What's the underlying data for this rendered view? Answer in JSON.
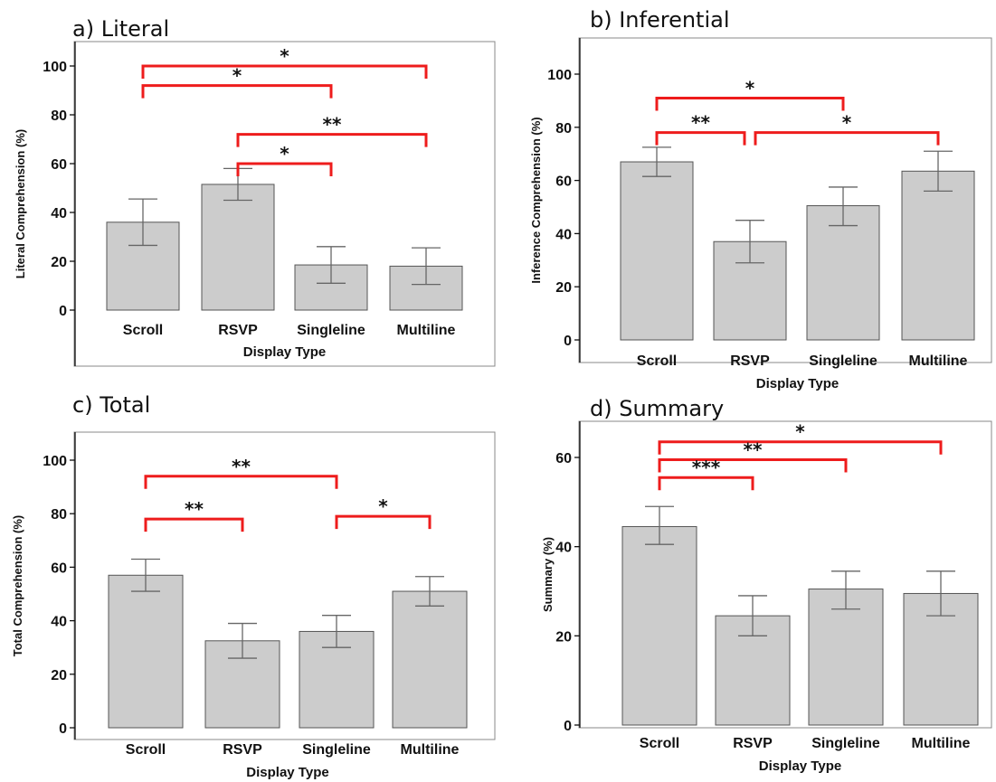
{
  "chart_data": [
    {
      "type": "bar",
      "title": "a) Literal",
      "xlabel": "Display Type",
      "ylabel": "Literal Comprehension (%)",
      "categories": [
        "Scroll",
        "RSVP",
        "Singleline",
        "Multiline"
      ],
      "values": [
        36,
        51.5,
        18.5,
        18
      ],
      "error_low": [
        26.5,
        45,
        11,
        10.5
      ],
      "error_high": [
        45.5,
        58,
        26,
        25.5
      ],
      "ylim": [
        0,
        110
      ],
      "yticks": [
        "0",
        "20",
        "40",
        "60",
        "80",
        "100"
      ],
      "significance": [
        {
          "from": 0,
          "to": 3,
          "label": "*",
          "level": 100
        },
        {
          "from": 0,
          "to": 2,
          "label": "*",
          "level": 92
        },
        {
          "from": 1,
          "to": 3,
          "label": "**",
          "level": 72
        },
        {
          "from": 1,
          "to": 2,
          "label": "*",
          "level": 60
        }
      ]
    },
    {
      "type": "bar",
      "title": "b) Inferential",
      "xlabel": "Display Type",
      "ylabel": "Inference Comprehension (%)",
      "categories": [
        "Scroll",
        "RSVP",
        "Singleline",
        "Multiline"
      ],
      "values": [
        67,
        37,
        50.5,
        63.5
      ],
      "error_low": [
        61.5,
        29,
        43,
        56
      ],
      "error_high": [
        72.5,
        45,
        57.5,
        71
      ],
      "ylim": [
        0,
        110
      ],
      "yticks": [
        "0",
        "20",
        "40",
        "60",
        "80",
        "100"
      ],
      "significance": [
        {
          "from": 0,
          "to": 2,
          "label": "*",
          "level": 91
        },
        {
          "from": 0,
          "to": 1,
          "label": "**",
          "level": 78
        },
        {
          "from": 1,
          "to": 3,
          "label": "*",
          "level": 78
        }
      ]
    },
    {
      "type": "bar",
      "title": "c) Total",
      "xlabel": "Display Type",
      "ylabel": "Total Comprehension (%)",
      "categories": [
        "Scroll",
        "RSVP",
        "Singleline",
        "Multiline"
      ],
      "values": [
        57,
        32.5,
        36,
        51
      ],
      "error_low": [
        51,
        26,
        30,
        45.5
      ],
      "error_high": [
        63,
        39,
        42,
        56.5
      ],
      "ylim": [
        0,
        110
      ],
      "yticks": [
        "0",
        "20",
        "40",
        "60",
        "80",
        "100"
      ],
      "significance": [
        {
          "from": 0,
          "to": 2,
          "label": "**",
          "level": 94
        },
        {
          "from": 0,
          "to": 1,
          "label": "**",
          "level": 78
        },
        {
          "from": 2,
          "to": 3,
          "label": "*",
          "level": 79
        }
      ]
    },
    {
      "type": "bar",
      "title": "d) Summary",
      "xlabel": "Display Type",
      "ylabel": "Summary (%)",
      "categories": [
        "Scroll",
        "RSVP",
        "Singleline",
        "Multiline"
      ],
      "values": [
        44.5,
        24.5,
        30.5,
        29.5
      ],
      "error_low": [
        40.5,
        20,
        26,
        24.5
      ],
      "error_high": [
        49,
        29,
        34.5,
        34.5
      ],
      "ylim": [
        0,
        66
      ],
      "yticks": [
        "0",
        "20",
        "40",
        "60"
      ],
      "significance": [
        {
          "from": 0,
          "to": 3,
          "label": "*",
          "level": 63.5
        },
        {
          "from": 0,
          "to": 2,
          "label": "**",
          "level": 59.5
        },
        {
          "from": 0,
          "to": 1,
          "label": "***",
          "level": 55.5
        }
      ]
    }
  ]
}
